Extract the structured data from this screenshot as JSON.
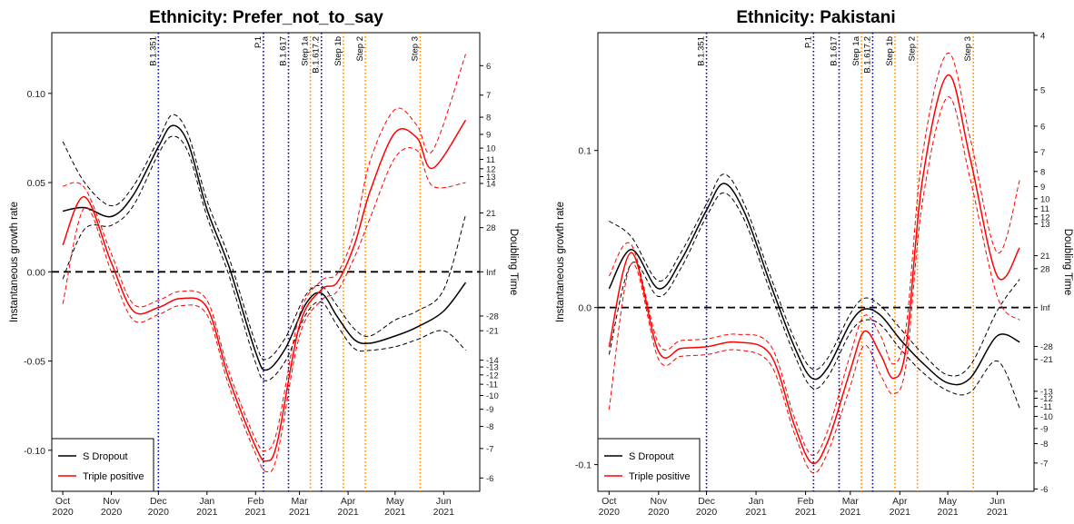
{
  "chart_data": [
    {
      "type": "line",
      "title": "Ethnicity: Prefer_not_to_say",
      "ylabel": "Instantaneous growth rate",
      "y2label": "Doubling Time",
      "ylim": [
        -0.123,
        0.134
      ],
      "xlim": [
        "2020-09-24",
        "2021-06-24"
      ],
      "y_ticks": [
        -0.1,
        -0.05,
        0.0,
        0.05,
        0.1
      ],
      "y_tick_labels": [
        "-0.10",
        "-0.05",
        "0.00",
        "0.05",
        "0.10"
      ],
      "x_ticks": [
        "2020-10-01",
        "2020-11-01",
        "2020-12-01",
        "2021-01-01",
        "2021-02-01",
        "2021-03-01",
        "2021-04-01",
        "2021-05-01",
        "2021-06-01"
      ],
      "x_tick_labels": [
        [
          "Oct",
          "2020"
        ],
        [
          "Nov",
          "2020"
        ],
        [
          "Dec",
          "2020"
        ],
        [
          "Jan",
          "2021"
        ],
        [
          "Feb",
          "2021"
        ],
        [
          "Mar",
          "2021"
        ],
        [
          "Apr",
          "2021"
        ],
        [
          "May",
          "2021"
        ],
        [
          "Jun",
          "2021"
        ]
      ],
      "doubling_ticks": [
        6,
        7,
        8,
        9,
        10,
        11,
        12,
        13,
        14,
        21,
        28,
        "Inf",
        -28,
        -21,
        -14,
        -13,
        -12,
        -11,
        -10,
        -9,
        -8,
        -7,
        -6
      ],
      "reference_line_y": 0,
      "vlines": [
        {
          "label": "B.1.351",
          "date": "2020-12-01",
          "color": "#00008b"
        },
        {
          "label": "P.1",
          "date": "2021-02-06",
          "color": "#00008b"
        },
        {
          "label": "B.1.617",
          "date": "2021-02-22",
          "color": "#00008b"
        },
        {
          "label": "Step 1a",
          "date": "2021-03-08",
          "color": "#ff8c00"
        },
        {
          "label": "B.1.617.2",
          "date": "2021-03-15",
          "color": "#00008b"
        },
        {
          "label": "Step 1b",
          "date": "2021-03-29",
          "color": "#ff8c00"
        },
        {
          "label": "Step 2",
          "date": "2021-04-12",
          "color": "#ff8c00"
        },
        {
          "label": "Step 3",
          "date": "2021-05-17",
          "color": "#ff8c00"
        }
      ],
      "legend": {
        "position": "bottom-left",
        "entries": [
          "S Dropout",
          "Triple positive"
        ]
      },
      "series": [
        {
          "name": "S Dropout",
          "color": "#000000",
          "x": [
            "2020-10-01",
            "2020-10-15",
            "2020-11-01",
            "2020-11-15",
            "2020-12-01",
            "2020-12-10",
            "2020-12-20",
            "2021-01-01",
            "2021-01-15",
            "2021-02-01",
            "2021-02-08",
            "2021-02-20",
            "2021-03-05",
            "2021-03-15",
            "2021-03-25",
            "2021-04-05",
            "2021-04-15",
            "2021-05-01",
            "2021-05-15",
            "2021-06-01",
            "2021-06-15"
          ],
          "y": [
            0.034,
            0.036,
            0.031,
            0.043,
            0.07,
            0.082,
            0.072,
            0.035,
            0.003,
            -0.045,
            -0.055,
            -0.043,
            -0.018,
            -0.012,
            -0.025,
            -0.038,
            -0.04,
            -0.036,
            -0.031,
            -0.022,
            -0.006
          ],
          "upper": [
            0.073,
            0.05,
            0.037,
            0.048,
            0.074,
            0.088,
            0.077,
            0.04,
            0.008,
            -0.04,
            -0.049,
            -0.037,
            -0.013,
            -0.008,
            -0.019,
            -0.032,
            -0.036,
            -0.027,
            -0.022,
            -0.01,
            0.032
          ],
          "lower": [
            -0.004,
            0.024,
            0.026,
            0.037,
            0.066,
            0.076,
            0.067,
            0.031,
            -0.002,
            -0.051,
            -0.061,
            -0.05,
            -0.024,
            -0.017,
            -0.03,
            -0.043,
            -0.044,
            -0.042,
            -0.038,
            -0.033,
            -0.044
          ]
        },
        {
          "name": "Triple positive",
          "color": "#ff0000",
          "x": [
            "2020-10-01",
            "2020-10-15",
            "2020-11-01",
            "2020-11-15",
            "2020-12-01",
            "2020-12-15",
            "2021-01-01",
            "2021-01-15",
            "2021-02-01",
            "2021-02-08",
            "2021-02-15",
            "2021-03-01",
            "2021-03-15",
            "2021-03-25",
            "2021-04-05",
            "2021-04-15",
            "2021-05-01",
            "2021-05-15",
            "2021-05-25",
            "2021-06-15"
          ],
          "y": [
            0.015,
            0.042,
            0.005,
            -0.022,
            -0.02,
            -0.015,
            -0.02,
            -0.06,
            -0.098,
            -0.106,
            -0.095,
            -0.03,
            -0.01,
            -0.006,
            0.015,
            0.045,
            0.078,
            0.075,
            0.058,
            0.085
          ],
          "upper": [
            0.048,
            0.047,
            0.01,
            -0.018,
            -0.016,
            -0.011,
            -0.016,
            -0.056,
            -0.094,
            -0.1,
            -0.088,
            -0.024,
            -0.005,
            -0.001,
            0.022,
            0.062,
            0.091,
            0.082,
            0.068,
            0.122
          ],
          "lower": [
            -0.018,
            0.036,
            0.0,
            -0.027,
            -0.024,
            -0.019,
            -0.024,
            -0.064,
            -0.102,
            -0.112,
            -0.102,
            -0.036,
            -0.016,
            -0.011,
            0.008,
            0.03,
            0.064,
            0.068,
            0.048,
            0.05
          ]
        }
      ]
    },
    {
      "type": "line",
      "title": "Ethnicity: Pakistani",
      "ylabel": "Instantaneous growth rate",
      "y2label": "Doubling Time",
      "ylim": [
        -0.117,
        0.175
      ],
      "xlim": [
        "2020-09-24",
        "2021-06-24"
      ],
      "y_ticks": [
        -0.1,
        0.0,
        0.1
      ],
      "y_tick_labels": [
        "-0.1",
        "0.0",
        "0.1"
      ],
      "x_ticks": [
        "2020-10-01",
        "2020-11-01",
        "2020-12-01",
        "2021-01-01",
        "2021-02-01",
        "2021-03-01",
        "2021-04-01",
        "2021-05-01",
        "2021-06-01"
      ],
      "x_tick_labels": [
        [
          "Oct",
          "2020"
        ],
        [
          "Nov",
          "2020"
        ],
        [
          "Dec",
          "2020"
        ],
        [
          "Jan",
          "2021"
        ],
        [
          "Feb",
          "2021"
        ],
        [
          "Mar",
          "2021"
        ],
        [
          "Apr",
          "2021"
        ],
        [
          "May",
          "2021"
        ],
        [
          "Jun",
          "2021"
        ]
      ],
      "doubling_ticks": [
        4,
        5,
        6,
        7,
        8,
        9,
        10,
        11,
        12,
        13,
        21,
        28,
        "Inf",
        -28,
        -21,
        -13,
        -12,
        -11,
        -10,
        -9,
        -8,
        -7,
        -6
      ],
      "reference_line_y": 0,
      "vlines": [
        {
          "label": "B.1.351",
          "date": "2020-12-01",
          "color": "#00008b"
        },
        {
          "label": "P.1",
          "date": "2021-02-06",
          "color": "#00008b"
        },
        {
          "label": "B.1.617",
          "date": "2021-02-22",
          "color": "#00008b"
        },
        {
          "label": "Step 1a",
          "date": "2021-03-08",
          "color": "#ff8c00"
        },
        {
          "label": "B.1.617.2",
          "date": "2021-03-15",
          "color": "#00008b"
        },
        {
          "label": "Step 1b",
          "date": "2021-03-29",
          "color": "#ff8c00"
        },
        {
          "label": "Step 2",
          "date": "2021-04-12",
          "color": "#ff8c00"
        },
        {
          "label": "Step 3",
          "date": "2021-05-17",
          "color": "#ff8c00"
        }
      ],
      "legend": {
        "position": "bottom-left",
        "entries": [
          "S Dropout",
          "Triple positive"
        ]
      },
      "series": [
        {
          "name": "S Dropout",
          "color": "#000000",
          "x": [
            "2020-10-01",
            "2020-10-15",
            "2020-11-01",
            "2020-11-15",
            "2020-12-01",
            "2020-12-12",
            "2020-12-25",
            "2021-01-10",
            "2021-01-25",
            "2021-02-05",
            "2021-02-15",
            "2021-03-01",
            "2021-03-10",
            "2021-03-20",
            "2021-04-01",
            "2021-04-15",
            "2021-05-01",
            "2021-05-15",
            "2021-06-01",
            "2021-06-15"
          ],
          "y": [
            0.012,
            0.037,
            0.012,
            0.03,
            0.062,
            0.079,
            0.06,
            0.015,
            -0.025,
            -0.045,
            -0.038,
            -0.01,
            -0.001,
            -0.005,
            -0.02,
            -0.035,
            -0.048,
            -0.045,
            -0.018,
            -0.022
          ],
          "upper": [
            0.055,
            0.045,
            0.017,
            0.035,
            0.066,
            0.085,
            0.065,
            0.02,
            -0.02,
            -0.039,
            -0.032,
            -0.004,
            0.006,
            0.001,
            -0.013,
            -0.029,
            -0.043,
            -0.037,
            -0.002,
            0.018
          ],
          "lower": [
            -0.03,
            0.028,
            0.007,
            0.025,
            0.058,
            0.073,
            0.055,
            0.01,
            -0.03,
            -0.051,
            -0.044,
            -0.016,
            -0.008,
            -0.011,
            -0.026,
            -0.041,
            -0.053,
            -0.054,
            -0.034,
            -0.064
          ]
        },
        {
          "name": "Triple positive",
          "color": "#ff0000",
          "x": [
            "2020-10-01",
            "2020-10-15",
            "2020-11-01",
            "2020-11-15",
            "2020-12-01",
            "2020-12-20",
            "2021-01-10",
            "2021-01-25",
            "2021-02-05",
            "2021-02-15",
            "2021-03-01",
            "2021-03-10",
            "2021-03-20",
            "2021-03-28",
            "2021-04-05",
            "2021-04-15",
            "2021-05-01",
            "2021-05-15",
            "2021-06-01",
            "2021-06-15"
          ],
          "y": [
            -0.025,
            0.035,
            -0.028,
            -0.026,
            -0.025,
            -0.022,
            -0.03,
            -0.075,
            -0.099,
            -0.085,
            -0.04,
            -0.015,
            -0.03,
            -0.045,
            -0.025,
            0.08,
            0.148,
            0.095,
            0.02,
            0.038
          ],
          "upper": [
            0.02,
            0.04,
            -0.023,
            -0.021,
            -0.02,
            -0.017,
            -0.024,
            -0.07,
            -0.094,
            -0.078,
            -0.03,
            -0.005,
            -0.018,
            -0.036,
            -0.012,
            0.096,
            0.162,
            0.108,
            0.035,
            0.081
          ],
          "lower": [
            -0.065,
            0.028,
            -0.033,
            -0.031,
            -0.03,
            -0.027,
            -0.036,
            -0.08,
            -0.105,
            -0.092,
            -0.05,
            -0.024,
            -0.043,
            -0.055,
            -0.036,
            0.066,
            0.134,
            0.082,
            0.007,
            -0.008
          ]
        }
      ]
    }
  ]
}
